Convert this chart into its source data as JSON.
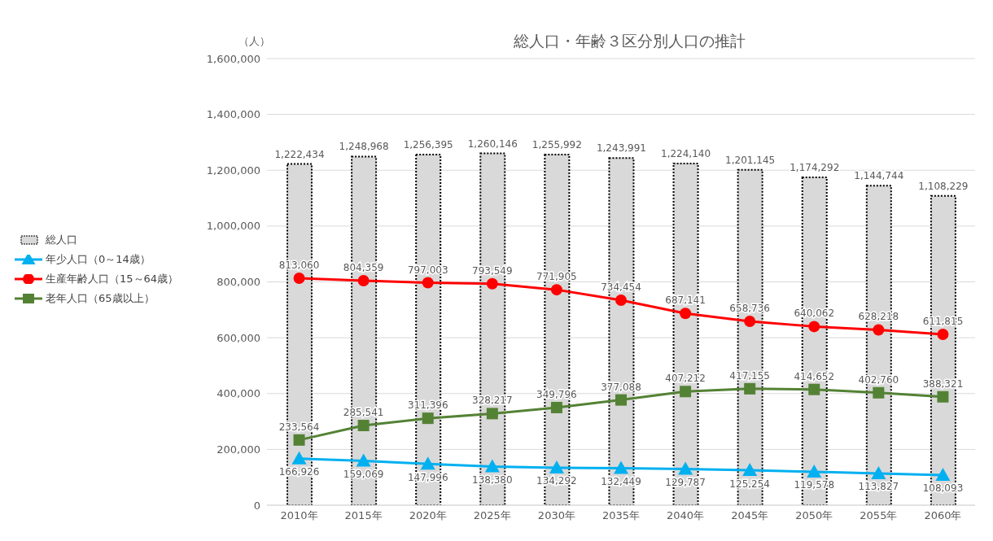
{
  "chart_data": {
    "type": "line",
    "title": "総人口・年齢３区分別人口の推計",
    "ylabel": "（人）",
    "categories": [
      "2010年",
      "2015年",
      "2020年",
      "2025年",
      "2030年",
      "2035年",
      "2040年",
      "2045年",
      "2050年",
      "2055年",
      "2060年"
    ],
    "series": [
      {
        "name": "総人口",
        "type": "bar",
        "color": "#d9d9d9",
        "line_style": "dotted",
        "values": [
          1222434,
          1248968,
          1256395,
          1260146,
          1255992,
          1243991,
          1224140,
          1201145,
          1174292,
          1144744,
          1108229
        ],
        "value_labels": [
          "1,222,434",
          "1,248,968",
          "1,256,395",
          "1,260,146",
          "1,255,992",
          "1,243,991",
          "1,224,140",
          "1,201,145",
          "1,174,292",
          "1,144,744",
          "1,108,229"
        ]
      },
      {
        "name": "年少人口（0～14歳）",
        "color": "#00b0f0",
        "marker": "triangle",
        "values": [
          166926,
          159069,
          147996,
          138380,
          134292,
          132449,
          129787,
          125254,
          119578,
          113827,
          108093
        ],
        "value_labels": [
          "166,926",
          "159,069",
          "147,996",
          "138,380",
          "134,292",
          "132,449",
          "129,787",
          "125,254",
          "119,578",
          "113,827",
          "108,093"
        ]
      },
      {
        "name": "生産年齢人口（15～64歳）",
        "color": "#ff0000",
        "marker": "circle",
        "values": [
          813060,
          804359,
          797003,
          793549,
          771905,
          734454,
          687141,
          658736,
          640062,
          628218,
          611815
        ],
        "value_labels": [
          "813,060",
          "804,359",
          "797,003",
          "793,549",
          "771,905",
          "734,454",
          "687,141",
          "658,736",
          "640,062",
          "628,218",
          "611,815"
        ]
      },
      {
        "name": "老年人口（65歳以上）",
        "color": "#548235",
        "marker": "square",
        "values": [
          233564,
          285541,
          311396,
          328217,
          349796,
          377088,
          407212,
          417155,
          414652,
          402760,
          388321
        ],
        "value_labels": [
          "233,564",
          "285,541",
          "311,396",
          "328,217",
          "349,796",
          "377,088",
          "407,212",
          "417,155",
          "414,652",
          "402,760",
          "388,321"
        ]
      }
    ],
    "ylim": [
      0,
      1600000
    ],
    "yticks": [
      {
        "value": 0,
        "label": "0"
      },
      {
        "value": 200000,
        "label": "200,000"
      },
      {
        "value": 400000,
        "label": "400,000"
      },
      {
        "value": 600000,
        "label": "600,000"
      },
      {
        "value": 800000,
        "label": "800,000"
      },
      {
        "value": 1000000,
        "label": "1,000,000"
      },
      {
        "value": 1200000,
        "label": "1,200,000"
      },
      {
        "value": 1400000,
        "label": "1,400,000"
      },
      {
        "value": 1600000,
        "label": "1,600,000"
      }
    ],
    "grid": "y",
    "legend": "left"
  }
}
